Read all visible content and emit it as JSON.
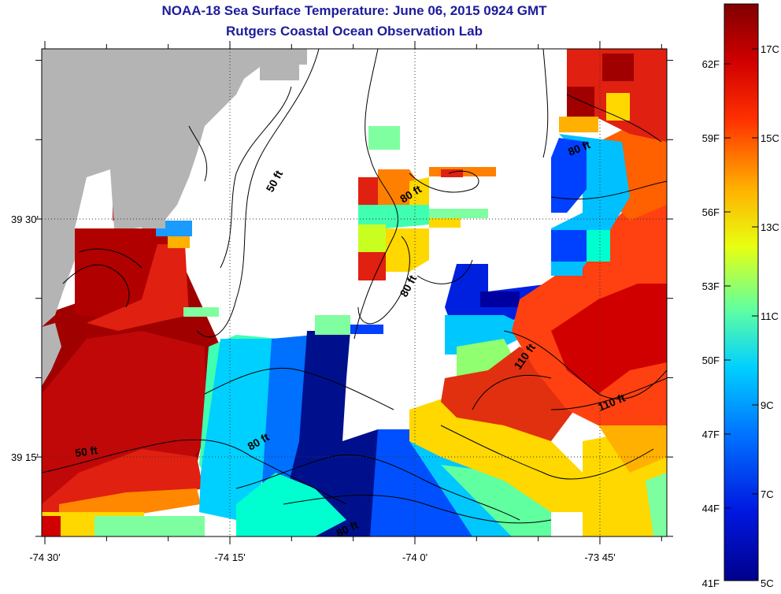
{
  "header": {
    "title": "NOAA-18 Sea Surface Temperature:  June 06, 2015 0924 GMT",
    "subtitle": "Rutgers Coastal Ocean Observation Lab"
  },
  "map": {
    "lon_labels": [
      "-74 30'",
      "-74 15'",
      "-74 0'",
      "-73 45'"
    ],
    "lat_labels": [
      "39 30'",
      "39 15'"
    ],
    "land_color": "#b4b4b4",
    "nodata_color": "#ffffff",
    "contours": [
      {
        "label": "50 ft",
        "kind": "bathymetry"
      },
      {
        "label": "80 ft",
        "kind": "bathymetry"
      },
      {
        "label": "110 ft",
        "kind": "bathymetry"
      }
    ],
    "contour_labels": [
      "50 ft",
      "80 ft",
      "80 ft",
      "80 ft",
      "80 ft",
      "80 ft",
      "110 ft",
      "110 ft",
      "50 ft"
    ]
  },
  "colorbar": {
    "min_c": 5,
    "max_c": 18,
    "celsius_labels": [
      "17C",
      "15C",
      "13C",
      "11C",
      "9C",
      "7C",
      "5C"
    ],
    "fahrenheit_labels": [
      "62F",
      "59F",
      "56F",
      "53F",
      "50F",
      "47F",
      "44F",
      "41F"
    ]
  }
}
